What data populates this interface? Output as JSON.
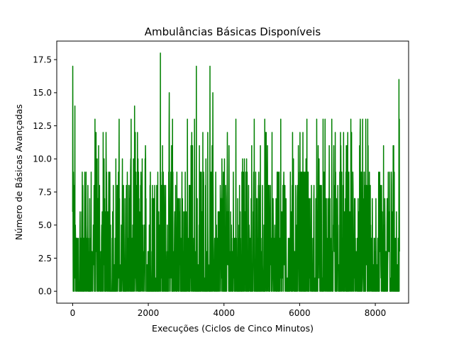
{
  "chart_data": {
    "type": "line",
    "title": "Ambulâncias Básicas Disponíveis",
    "xlabel": "Execuções (Ciclos de Cinco Minutos)",
    "ylabel": "Número de Básicas Avançadas",
    "xlim": [
      -420,
      8880
    ],
    "ylim": [
      -0.9,
      18.9
    ],
    "x_ticks": [
      0,
      2000,
      4000,
      6000,
      8000
    ],
    "x_tick_labels": [
      "0",
      "2000",
      "4000",
      "6000",
      "8000"
    ],
    "y_ticks": [
      0.0,
      2.5,
      5.0,
      7.5,
      10.0,
      12.5,
      15.0,
      17.5
    ],
    "y_tick_labels": [
      "0.0",
      "2.5",
      "5.0",
      "7.5",
      "10.0",
      "12.5",
      "15.0",
      "17.5"
    ],
    "grid": false,
    "legend": "none",
    "series": [
      {
        "color": "#008000",
        "x_start": 0,
        "x_end": 8640,
        "min": 0,
        "max": 18,
        "notable_points": [
          {
            "x": 0,
            "y": 6
          },
          {
            "x": 3,
            "y": 17
          },
          {
            "x": 60,
            "y": 14
          },
          {
            "x": 2320,
            "y": 18
          },
          {
            "x": 3270,
            "y": 17
          },
          {
            "x": 3630,
            "y": 17
          },
          {
            "x": 8625,
            "y": 16
          },
          {
            "x": 8640,
            "y": 3
          }
        ]
      }
    ]
  }
}
